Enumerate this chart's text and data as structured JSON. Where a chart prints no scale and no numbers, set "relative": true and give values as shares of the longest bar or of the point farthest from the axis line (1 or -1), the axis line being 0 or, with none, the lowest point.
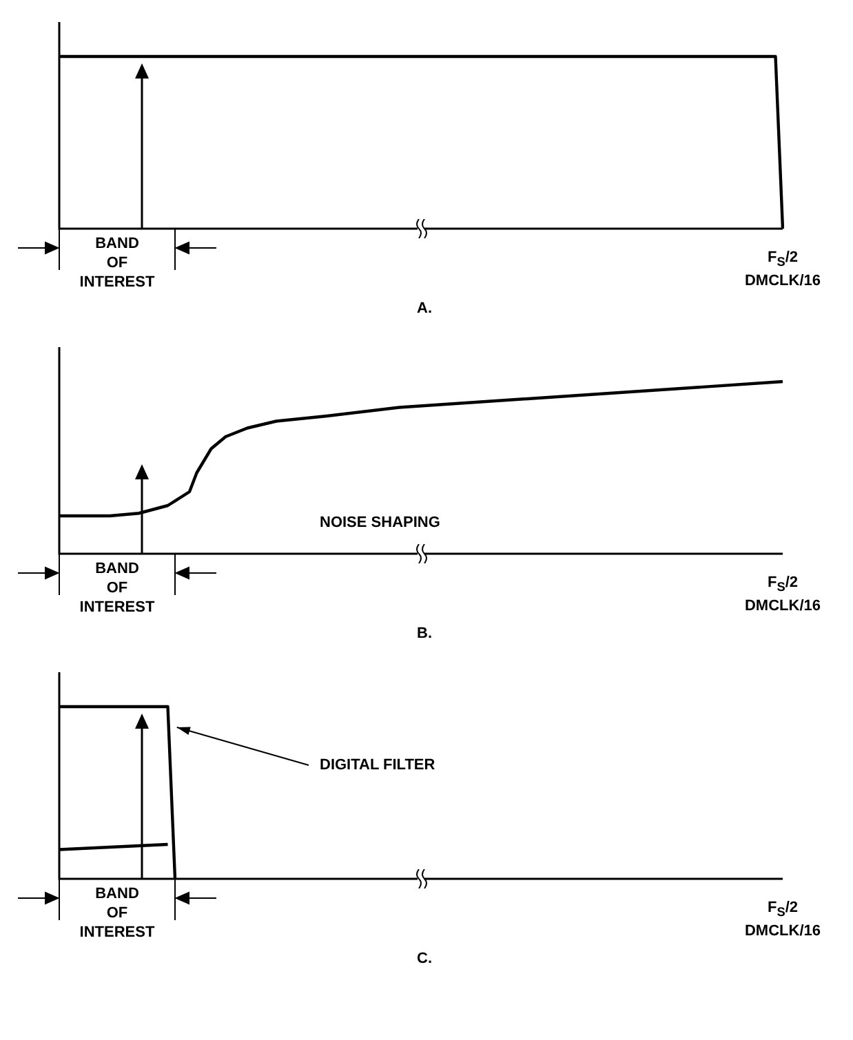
{
  "chart_data": [
    {
      "type": "line",
      "title": "A.",
      "relative": true,
      "annotations": [
        "BAND OF INTEREST",
        "F$_{S}$/2",
        "DMCLK/16"
      ],
      "categories": [
        null,
        null,
        null,
        null,
        null,
        null,
        null,
        null,
        null,
        null,
        null,
        null,
        null,
        null,
        null,
        null,
        null,
        null,
        null,
        null,
        null,
        null,
        null,
        null,
        null,
        null,
        null,
        null,
        null,
        null,
        null,
        null,
        null,
        null,
        null,
        null,
        null,
        null,
        null,
        null,
        null,
        null,
        null,
        null,
        null,
        null,
        null,
        null,
        null,
        null,
        null,
        null,
        null,
        null,
        null,
        null,
        null,
        null,
        null,
        null,
        null,
        null,
        null,
        null,
        null,
        null,
        null,
        null,
        null,
        null,
        null,
        null,
        null,
        null,
        null,
        null,
        null,
        null,
        null,
        null,
        null,
        null,
        null,
        null,
        null,
        null,
        null,
        null,
        null,
        null,
        null,
        null,
        null,
        null,
        null,
        null,
        null,
        null,
        null,
        null,
        null
      ],
      "series": [
        {
          "color": "#000000",
          "values": [
            1,
            null,
            null,
            null,
            null,
            null,
            null,
            null,
            null,
            null,
            null,
            null,
            null,
            null,
            null,
            null,
            null,
            null,
            null,
            null,
            null,
            null,
            null,
            null,
            null,
            null,
            null,
            null,
            null,
            null,
            null,
            null,
            null,
            null,
            null,
            null,
            null,
            null,
            null,
            null,
            null,
            null,
            null,
            null,
            null,
            null,
            null,
            null,
            null,
            null,
            null,
            null,
            null,
            null,
            null,
            null,
            null,
            null,
            null,
            null,
            null,
            null,
            null,
            null,
            null,
            null,
            null,
            null,
            null,
            null,
            null,
            null,
            null,
            null,
            null,
            null,
            null,
            null,
            null,
            null,
            null,
            null,
            null,
            null,
            null,
            null,
            null,
            null,
            null,
            null,
            null,
            null,
            null,
            null,
            null,
            null,
            null,
            null,
            null,
            1,
            0
          ]
        }
      ]
    },
    {
      "type": "line",
      "title": "B.",
      "relative": true,
      "annotations": [
        "BAND OF INTEREST",
        "F$_{S}$/2",
        "DMCLK/16",
        "NOISE SHAPING"
      ],
      "categories": [
        null,
        null,
        null,
        null,
        null,
        null,
        null,
        null,
        null,
        null,
        null,
        null,
        null,
        null,
        null,
        null,
        null,
        null,
        null,
        null,
        null,
        null,
        null,
        null,
        null,
        null,
        null,
        null,
        null,
        null,
        null,
        null,
        null,
        null,
        null,
        null,
        null,
        null,
        null,
        null,
        null,
        null,
        null,
        null,
        null,
        null,
        null,
        null,
        null,
        null,
        null,
        null,
        null,
        null,
        null,
        null,
        null,
        null,
        null,
        null,
        null,
        null,
        null,
        null,
        null,
        null,
        null,
        null,
        null,
        null,
        null,
        null,
        null,
        null,
        null,
        null,
        null,
        null,
        null,
        null,
        null,
        null,
        null,
        null,
        null,
        null,
        null,
        null,
        null,
        null,
        null,
        null,
        null,
        null,
        null,
        null,
        null,
        null,
        null,
        null,
        null
      ],
      "series": [
        {
          "color": "#000000",
          "values": [
            0.22,
            null,
            null,
            null,
            null,
            null,
            null,
            0.22,
            null,
            null,
            null,
            0.235,
            null,
            null,
            null,
            0.28,
            null,
            null,
            0.36,
            0.47,
            null,
            0.61,
            null,
            0.68,
            null,
            null,
            0.73,
            null,
            null,
            null,
            0.77,
            null,
            null,
            null,
            null,
            null,
            null,
            0.8,
            null,
            null,
            null,
            null,
            null,
            null,
            null,
            null,
            null,
            0.85,
            null,
            null,
            null,
            null,
            null,
            null,
            null,
            null,
            null,
            null,
            null,
            null,
            null,
            null,
            null,
            null,
            null,
            null,
            null,
            null,
            null,
            null,
            null,
            null,
            null,
            null,
            null,
            null,
            null,
            null,
            null,
            null,
            null,
            null,
            null,
            null,
            null,
            null,
            null,
            null,
            null,
            null,
            null,
            null,
            null,
            null,
            null,
            null,
            null,
            null,
            null,
            null,
            1
          ]
        }
      ]
    },
    {
      "type": "line",
      "title": "C.",
      "relative": true,
      "annotations": [
        "BAND OF INTEREST",
        "F$_{S}$/2",
        "DMCLK/16",
        "DIGITAL FILTER"
      ],
      "categories": [
        null,
        null,
        null,
        null,
        null,
        null,
        null,
        null,
        null,
        null,
        null,
        null,
        null,
        null,
        null,
        null,
        null,
        null,
        null,
        null,
        null,
        null,
        null,
        null,
        null,
        null,
        null,
        null,
        null,
        null,
        null,
        null,
        null,
        null,
        null,
        null,
        null,
        null,
        null,
        null,
        null,
        null,
        null,
        null,
        null,
        null,
        null,
        null,
        null,
        null,
        null,
        null,
        null,
        null,
        null,
        null,
        null,
        null,
        null,
        null,
        null,
        null,
        null,
        null,
        null,
        null,
        null,
        null,
        null,
        null,
        null,
        null,
        null,
        null,
        null,
        null,
        null,
        null,
        null,
        null,
        null,
        null,
        null,
        null,
        null,
        null,
        null,
        null,
        null,
        null,
        null,
        null,
        null,
        null,
        null,
        null,
        null,
        null,
        null,
        null,
        null
      ],
      "series": [
        {
          "color": "#000000",
          "values": [
            1,
            null,
            null,
            null,
            null,
            null,
            null,
            null,
            null,
            null,
            null,
            null,
            null,
            null,
            null,
            1,
            0,
            null,
            null,
            null,
            null,
            null,
            null,
            null,
            null,
            null,
            null,
            null,
            null,
            null,
            null,
            null,
            null,
            null,
            null,
            null,
            null,
            null,
            null,
            null,
            null,
            null,
            null,
            null,
            null,
            null,
            null,
            null,
            null,
            null,
            null,
            null,
            null,
            null,
            null,
            null,
            null,
            null,
            null,
            null,
            null,
            null,
            null,
            null,
            null,
            null,
            null,
            null,
            null,
            null,
            null,
            null,
            null,
            null,
            null,
            null,
            null,
            null,
            null,
            null,
            null,
            null,
            null,
            null,
            null,
            null,
            null,
            null,
            null,
            null,
            null,
            null,
            null,
            null,
            null,
            null,
            null,
            null,
            null,
            null,
            null
          ]
        },
        {
          "color": "#000000",
          "values": [
            0.17,
            null,
            null,
            null,
            null,
            null,
            null,
            null,
            null,
            null,
            null,
            null,
            null,
            null,
            null,
            0.2,
            null,
            null,
            null,
            null,
            null,
            null,
            null,
            null,
            null,
            null,
            null,
            null,
            null,
            null,
            null,
            null,
            null,
            null,
            null,
            null,
            null,
            null,
            null,
            null,
            null,
            null,
            null,
            null,
            null,
            null,
            null,
            null,
            null,
            null,
            null,
            null,
            null,
            null,
            null,
            null,
            null,
            null,
            null,
            null,
            null,
            null,
            null,
            null,
            null,
            null,
            null,
            null,
            null,
            null,
            null,
            null,
            null,
            null,
            null,
            null,
            null,
            null,
            null,
            null,
            null,
            null,
            null,
            null,
            null,
            null,
            null,
            null,
            null,
            null,
            null,
            null,
            null,
            null,
            null,
            null,
            null,
            null,
            null,
            null,
            null
          ]
        }
      ]
    }
  ]
}
